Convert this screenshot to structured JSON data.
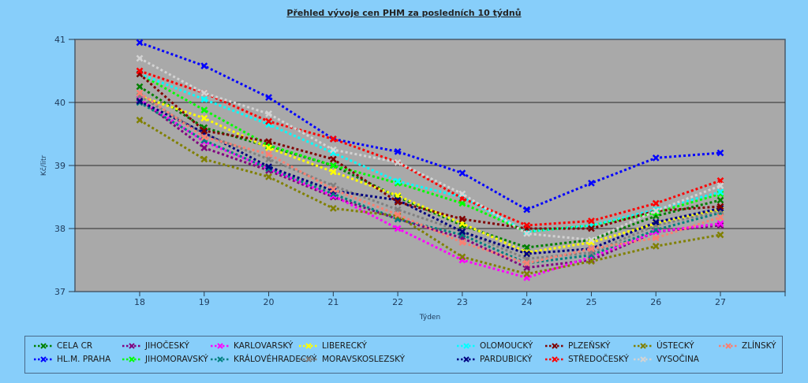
{
  "chart_data": {
    "type": "line",
    "title": "Přehled vývoje cen PHM za posledních 10 týdnů",
    "xlabel": "Týden",
    "ylabel": "Kč/litr",
    "categories": [
      "18",
      "19",
      "20",
      "21",
      "22",
      "23",
      "24",
      "25",
      "26",
      "27"
    ],
    "ylim": [
      37,
      41
    ],
    "yticks": [
      "37",
      "38",
      "39",
      "40",
      "41"
    ],
    "grid": true,
    "legend_position": "bottom",
    "series": [
      {
        "name": "CELA CR",
        "color": "#008000",
        "values": [
          40.25,
          39.6,
          39.3,
          39.0,
          38.5,
          38.05,
          37.7,
          37.82,
          38.2,
          38.45
        ]
      },
      {
        "name": "HL.M. PRAHA",
        "color": "#0000ff",
        "values": [
          40.95,
          40.58,
          40.08,
          39.42,
          39.22,
          38.88,
          38.3,
          38.72,
          39.12,
          39.2
        ]
      },
      {
        "name": "JIHOČESKÝ",
        "color": "#800080",
        "values": [
          40.05,
          39.28,
          38.92,
          38.5,
          38.15,
          37.85,
          37.38,
          37.5,
          37.95,
          38.05
        ]
      },
      {
        "name": "JIHOMORAVSKÝ",
        "color": "#00ff00",
        "values": [
          40.45,
          39.88,
          39.32,
          39.0,
          38.72,
          38.4,
          37.95,
          38.05,
          38.25,
          38.55
        ]
      },
      {
        "name": "KARLOVARSKÝ",
        "color": "#ff00ff",
        "values": [
          40.05,
          39.38,
          38.95,
          38.52,
          38.0,
          37.5,
          37.22,
          37.55,
          37.95,
          38.08
        ]
      },
      {
        "name": "KRÁLOVÉHRADECKÝ",
        "color": "#008080",
        "values": [
          40.0,
          39.4,
          38.95,
          38.55,
          38.15,
          37.9,
          37.45,
          37.58,
          37.98,
          38.25
        ]
      },
      {
        "name": "LIBERECKÝ",
        "color": "#ffff00",
        "values": [
          40.1,
          39.75,
          39.28,
          38.9,
          38.52,
          38.08,
          37.62,
          37.78,
          38.08,
          38.3
        ]
      },
      {
        "name": "MORAVSKOSLEZSKÝ",
        "color": "#808080",
        "values": [
          40.1,
          39.5,
          39.1,
          38.68,
          38.3,
          37.95,
          37.52,
          37.62,
          38.05,
          38.28
        ]
      },
      {
        "name": "OLOMOUCKÝ",
        "color": "#00ffff",
        "values": [
          40.45,
          40.05,
          39.65,
          39.2,
          38.75,
          38.5,
          37.95,
          38.05,
          38.3,
          38.58
        ]
      },
      {
        "name": "PARDUBICKÝ",
        "color": "#000080",
        "values": [
          40.02,
          39.52,
          38.98,
          38.6,
          38.45,
          37.95,
          37.6,
          37.68,
          38.1,
          38.32
        ]
      },
      {
        "name": "PLZEŇSKÝ",
        "color": "#800000",
        "values": [
          40.45,
          39.55,
          39.38,
          39.1,
          38.42,
          38.15,
          38.0,
          38.0,
          38.28,
          38.35
        ]
      },
      {
        "name": "STŘEDOČESKÝ",
        "color": "#ff0000",
        "values": [
          40.5,
          40.15,
          39.7,
          39.42,
          39.05,
          38.48,
          38.05,
          38.12,
          38.4,
          38.76
        ]
      },
      {
        "name": "ÚSTECKÝ",
        "color": "#808000",
        "values": [
          39.72,
          39.1,
          38.82,
          38.32,
          38.2,
          37.55,
          37.28,
          37.48,
          37.72,
          37.9
        ]
      },
      {
        "name": "VYSOČINA",
        "color": "#d3d3d3",
        "values": [
          40.7,
          40.15,
          39.82,
          39.25,
          39.05,
          38.55,
          37.92,
          37.82,
          38.28,
          38.68
        ]
      },
      {
        "name": "ZLÍNSKÝ",
        "color": "#fa8072",
        "values": [
          40.15,
          39.45,
          39.18,
          38.62,
          38.22,
          37.78,
          37.45,
          37.68,
          37.85,
          38.18
        ]
      }
    ]
  }
}
